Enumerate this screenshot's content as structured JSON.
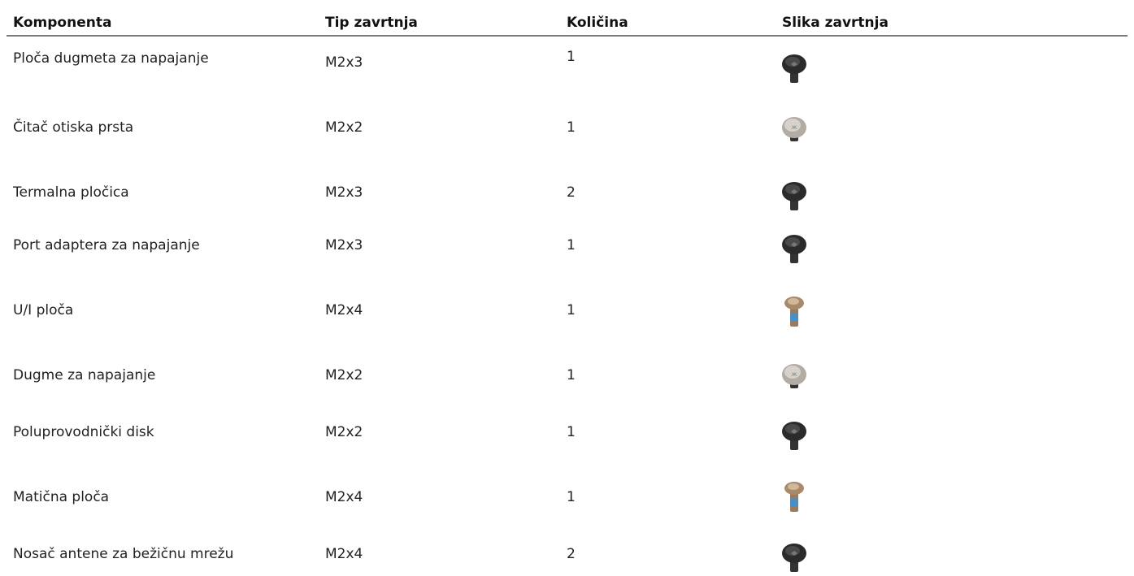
{
  "table": {
    "headers": [
      "Komponenta",
      "Tip zavrtnja",
      "Količina",
      "Slika zavrtnja"
    ],
    "rows": [
      [
        "Ploča dugmeta za napajanje",
        "M2x3",
        1
      ],
      [
        "Čitač otiska prsta",
        "M2x2",
        1
      ],
      [
        "Termalna pločica",
        "M2x3",
        2
      ],
      [
        "Port adaptera za napajanje",
        "M2x3",
        1
      ],
      [
        "U/I ploča",
        "M2x4",
        1
      ],
      [
        "Dugme za napajanje",
        "M2x2",
        1
      ],
      [
        "Poluprovodnički disk",
        "M2x2",
        1
      ],
      [
        "Matična ploča",
        "M2x4",
        1
      ],
      [
        "Nosač antene za bežičnu mrežu",
        "M2x4",
        2
      ]
    ]
  }
}
